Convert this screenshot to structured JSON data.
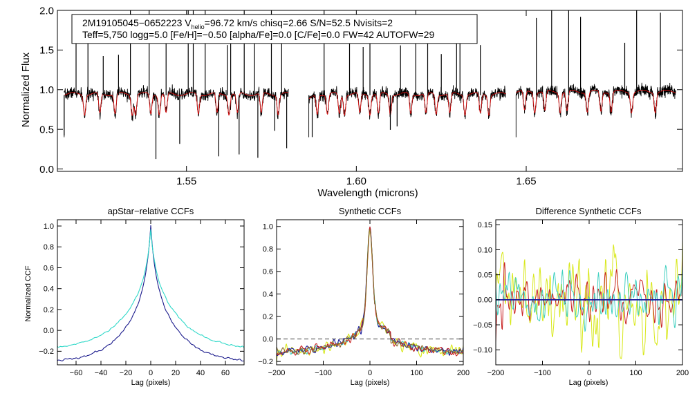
{
  "chart_data": [
    {
      "id": "spectrum",
      "type": "line",
      "title": "",
      "xlabel": "Wavelength (microns)",
      "ylabel": "Normalized Flux",
      "xlim": [
        1.512,
        1.696
      ],
      "ylim": [
        -0.03,
        2.0
      ],
      "xticks": [
        1.55,
        1.6,
        1.65
      ],
      "xtick_labels": [
        "1.55",
        "1.60",
        "1.65"
      ],
      "yticks": [
        0.0,
        0.5,
        1.0,
        1.5,
        2.0
      ],
      "ytick_labels": [
        "0.0",
        "0.5",
        "1.0",
        "1.5",
        "2.0"
      ],
      "info": {
        "line1_pre": "2M19105045−0652223  V",
        "line1_sub": "helio",
        "line1_post": "=96.72 km/s  chisq=2.66  S/N=52.5  Nvisits=2",
        "line2": "Teff=5,750 logg=5.0 [Fe/H]=−0.50 [alpha/Fe]=0.0 [C/Fe]=0.0 FW=42 AUTOFW=29"
      },
      "chips": [
        [
          1.514,
          1.58
        ],
        [
          1.586,
          1.644
        ],
        [
          1.647,
          1.694
        ]
      ],
      "continuum": 0.93,
      "sky_spikes_up": [
        1.5175,
        1.521,
        1.5255,
        1.53,
        1.5335,
        1.539,
        1.544,
        1.5505,
        1.552,
        1.5555,
        1.562,
        1.563,
        1.567,
        1.57,
        1.575,
        1.578,
        1.5905,
        1.598,
        1.602,
        1.604,
        1.613,
        1.6175,
        1.621,
        1.625,
        1.6295,
        1.6305,
        1.6365,
        1.653,
        1.6575,
        1.6625,
        1.666,
        1.679,
        1.6825,
        1.6895
      ],
      "dips_down": [
        1.514,
        1.541,
        1.548,
        1.5595,
        1.5655,
        1.571,
        1.576,
        1.5795,
        1.587,
        1.61,
        1.612
      ],
      "absorption_lines": [
        1.52,
        1.5245,
        1.529,
        1.534,
        1.535,
        1.5395,
        1.542,
        1.544,
        1.5535,
        1.559,
        1.5625,
        1.565,
        1.572,
        1.577,
        1.5885,
        1.5915,
        1.595,
        1.5965,
        1.601,
        1.604,
        1.6065,
        1.61,
        1.616,
        1.6205,
        1.6235,
        1.6275,
        1.632,
        1.6365,
        1.639,
        1.6495,
        1.6525,
        1.6555,
        1.66,
        1.662,
        1.668,
        1.672,
        1.675,
        1.681,
        1.688
      ],
      "series": [
        {
          "name": "observed",
          "color": "#000000"
        },
        {
          "name": "model",
          "color": "#e01010"
        }
      ]
    },
    {
      "id": "apstar-ccf",
      "type": "line",
      "title": "apStar−relative CCFs",
      "xlabel": "Lag (pixels)",
      "ylabel": "Normalized CCF",
      "xlim": [
        -75,
        75
      ],
      "ylim": [
        -0.33,
        1.06
      ],
      "xticks": [
        -60,
        -40,
        -20,
        0,
        20,
        40,
        60
      ],
      "xtick_labels": [
        "−60",
        "−40",
        "−20",
        "0",
        "20",
        "40",
        "60"
      ],
      "yticks": [
        -0.2,
        0.0,
        0.2,
        0.4,
        0.6,
        0.8,
        1.0
      ],
      "ytick_labels": [
        "−0.2",
        "0.0",
        "0.2",
        "0.4",
        "0.6",
        "0.8",
        "1.0"
      ],
      "series": [
        {
          "name": "visit 1",
          "color": "#1a1a8c",
          "peak": 1.0,
          "narrow_amp": 0.3,
          "narrow_width": 3.0,
          "broad_amp": 0.72,
          "broad_width": 20,
          "base_edge": -0.31
        },
        {
          "name": "visit 2",
          "color": "#2ed8c8",
          "peak": 0.96,
          "narrow_amp": 0.26,
          "narrow_width": 3.2,
          "broad_amp": 0.68,
          "broad_width": 23,
          "base_edge": -0.19
        }
      ]
    },
    {
      "id": "synthetic-ccf",
      "type": "line",
      "title": "Synthetic CCFs",
      "xlabel": "Lag (pixels)",
      "ylabel": "",
      "xlim": [
        -200,
        200
      ],
      "ylim": [
        -0.23,
        1.06
      ],
      "xticks": [
        -200,
        -100,
        0,
        100,
        200
      ],
      "xtick_labels": [
        "−200",
        "−100",
        "0",
        "100",
        "200"
      ],
      "yticks": [
        -0.2,
        0.0,
        0.2,
        0.4,
        0.6,
        0.8,
        1.0
      ],
      "ytick_labels": [
        "−0.2",
        "0.0",
        "0.2",
        "0.4",
        "0.6",
        "0.8",
        "1.0"
      ],
      "zero_line": 0.0,
      "series": [
        {
          "name": "yellow",
          "color": "#d8e81a",
          "peak": 0.98
        },
        {
          "name": "cyan",
          "color": "#40d0c0",
          "peak": 0.99
        },
        {
          "name": "blue",
          "color": "#1a1a9c",
          "peak": 1.0
        },
        {
          "name": "red",
          "color": "#c82020",
          "peak": 1.0
        },
        {
          "name": "brown",
          "color": "#8a6a2a",
          "peak": 1.0
        }
      ]
    },
    {
      "id": "diff-ccf",
      "type": "line",
      "title": "Difference Synthetic CCFs",
      "xlabel": "Lag (pixels)",
      "ylabel": "",
      "xlim": [
        -200,
        200
      ],
      "ylim": [
        -0.13,
        0.16
      ],
      "xticks": [
        -200,
        -100,
        0,
        100,
        200
      ],
      "xtick_labels": [
        "−200",
        "−100",
        "0",
        "100",
        "200"
      ],
      "yticks": [
        -0.1,
        -0.05,
        0.0,
        0.05,
        0.1,
        0.15
      ],
      "ytick_labels": [
        "−0.10",
        "−0.05",
        "0.00",
        "0.05",
        "0.10",
        "0.15"
      ],
      "series": [
        {
          "name": "yellow",
          "color": "#d8e81a"
        },
        {
          "name": "red",
          "color": "#c82020"
        },
        {
          "name": "cyan",
          "color": "#40d0c0"
        },
        {
          "name": "blue",
          "color": "#1a1a9c"
        }
      ]
    }
  ]
}
